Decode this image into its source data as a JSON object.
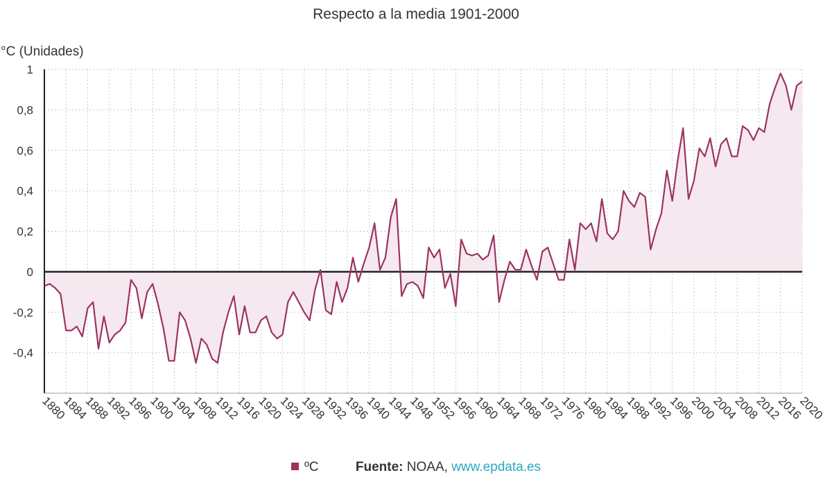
{
  "colors": {
    "series": "#9b3361",
    "fill": "#f6e8ef",
    "zero_line": "#222222",
    "link": "#2aa8c4"
  },
  "footer": {
    "legend_label": "ºC",
    "source_label": "Fuente:",
    "source_name": "NOAA,",
    "source_link": "www.epdata.es"
  },
  "chart_data": {
    "type": "area",
    "title": "Respecto a la media 1901-2000",
    "ylabel": "°C (Unidades)",
    "xlabel": "",
    "ylim": [
      -0.6,
      1.0
    ],
    "xlim": [
      1880,
      2020
    ],
    "y_ticks": [
      "1",
      "0,8",
      "0,6",
      "0,4",
      "0,2",
      "0",
      "-0,2",
      "-0,4"
    ],
    "y_tick_values": [
      1,
      0.8,
      0.6,
      0.4,
      0.2,
      0,
      -0.2,
      -0.4
    ],
    "x_ticks": [
      "1880",
      "1884",
      "1888",
      "1892",
      "1896",
      "1900",
      "1904",
      "1908",
      "1912",
      "1916",
      "1920",
      "1924",
      "1928",
      "1932",
      "1936",
      "1940",
      "1944",
      "1948",
      "1952",
      "1956",
      "1960",
      "1964",
      "1968",
      "1972",
      "1976",
      "1980",
      "1984",
      "1988",
      "1992",
      "1996",
      "2000",
      "2004",
      "2008",
      "2012",
      "2016",
      "2020"
    ],
    "grid": true,
    "legend": "bottom",
    "series": [
      {
        "name": "ºC",
        "x_start": 1880,
        "x_step": 1,
        "values": [
          -0.07,
          -0.06,
          -0.08,
          -0.11,
          -0.29,
          -0.29,
          -0.27,
          -0.32,
          -0.18,
          -0.15,
          -0.38,
          -0.22,
          -0.35,
          -0.31,
          -0.29,
          -0.25,
          -0.04,
          -0.08,
          -0.23,
          -0.1,
          -0.06,
          -0.16,
          -0.28,
          -0.44,
          -0.44,
          -0.2,
          -0.24,
          -0.33,
          -0.45,
          -0.33,
          -0.36,
          -0.43,
          -0.45,
          -0.3,
          -0.2,
          -0.12,
          -0.31,
          -0.17,
          -0.3,
          -0.3,
          -0.24,
          -0.22,
          -0.3,
          -0.33,
          -0.31,
          -0.15,
          -0.1,
          -0.15,
          -0.2,
          -0.24,
          -0.09,
          0.01,
          -0.19,
          -0.21,
          -0.05,
          -0.15,
          -0.08,
          0.07,
          -0.05,
          0.04,
          0.12,
          0.24,
          0.01,
          0.07,
          0.27,
          0.36,
          -0.12,
          -0.06,
          -0.05,
          -0.07,
          -0.13,
          0.12,
          0.07,
          0.11,
          -0.08,
          -0.01,
          -0.17,
          0.16,
          0.09,
          0.08,
          0.09,
          0.06,
          0.08,
          0.18,
          -0.15,
          -0.04,
          0.05,
          0.01,
          0.01,
          0.11,
          0.03,
          -0.04,
          0.1,
          0.12,
          0.04,
          -0.04,
          -0.04,
          0.16,
          0.01,
          0.24,
          0.21,
          0.24,
          0.15,
          0.36,
          0.19,
          0.16,
          0.2,
          0.4,
          0.35,
          0.32,
          0.39,
          0.37,
          0.11,
          0.21,
          0.29,
          0.5,
          0.35,
          0.55,
          0.71,
          0.36,
          0.45,
          0.61,
          0.57,
          0.66,
          0.52,
          0.63,
          0.66,
          0.57,
          0.57,
          0.72,
          0.7,
          0.65,
          0.71,
          0.69,
          0.83,
          0.91,
          0.98,
          0.92,
          0.8,
          0.92,
          0.94
        ]
      }
    ]
  }
}
